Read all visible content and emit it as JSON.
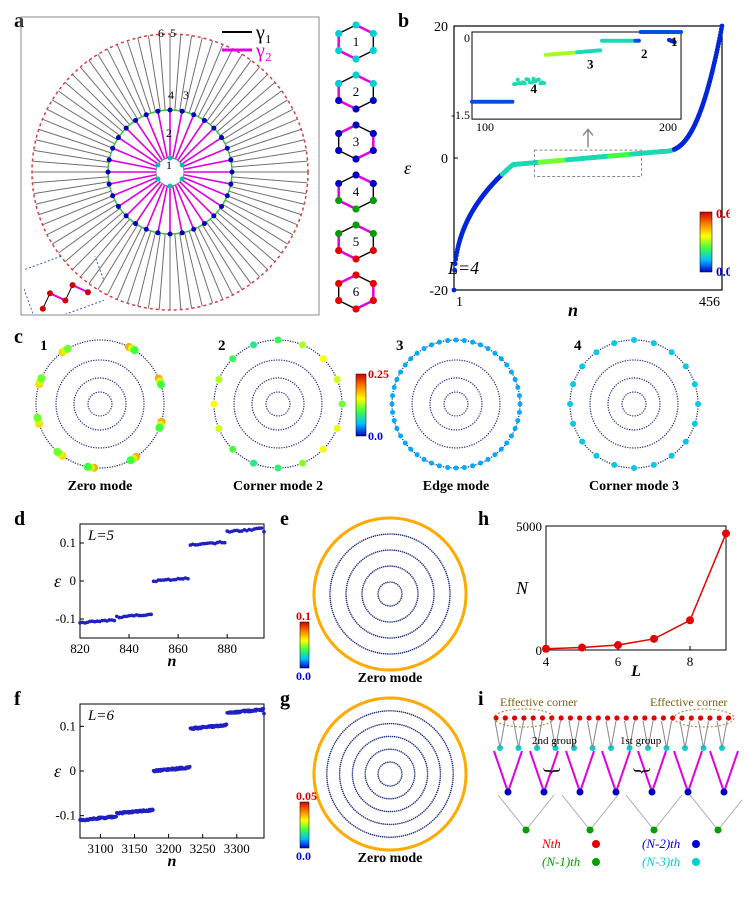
{
  "panels": {
    "a": {
      "label": "a"
    },
    "b": {
      "label": "b",
      "xlabel": "n",
      "ylabel": "ε",
      "xlim": [
        1,
        456
      ],
      "ylim": [
        -20,
        20
      ],
      "annotation": "L=4",
      "inset": {
        "xlim": [
          100,
          200
        ],
        "ylim": [
          -1.5,
          1.5
        ]
      },
      "cbar": {
        "min": "0.0",
        "max": "0.6"
      }
    },
    "c": {
      "labels": [
        "Zero mode",
        "Corner mode 2",
        "Edge mode",
        "Corner mode 3"
      ],
      "numbers": [
        "1",
        "2",
        "3",
        "4"
      ],
      "cbar": {
        "min": "0.0",
        "max": "0.25"
      }
    },
    "d": {
      "label": "d",
      "xlabel": "n",
      "ylabel": "ε",
      "xlim": [
        820,
        890
      ],
      "ylim": [
        -0.15,
        0.15
      ],
      "annotation": "L=5"
    },
    "e": {
      "label": "e",
      "caption": "Zero mode",
      "cbar": {
        "min": "0.0",
        "max": "0.1"
      }
    },
    "f": {
      "label": "f",
      "xlabel": "n",
      "ylabel": "ε",
      "xlim": [
        3080,
        3340
      ],
      "ylim": [
        -0.15,
        0.15
      ],
      "annotation": "L=6"
    },
    "g": {
      "label": "g",
      "caption": "Zero mode",
      "cbar": {
        "min": "0.0",
        "max": "0.05"
      }
    },
    "h": {
      "label": "h",
      "xlabel": "L",
      "ylabel": "N",
      "xlim": [
        4,
        9
      ],
      "ylim": [
        0,
        5000
      ],
      "xticks": [
        4,
        6,
        8
      ],
      "yticks": [
        0,
        5000
      ],
      "data_x": [
        4,
        5,
        6,
        7,
        8,
        9
      ],
      "data_y": [
        50,
        100,
        200,
        450,
        1200,
        4700
      ]
    },
    "i": {
      "label": "i",
      "effective_corner": "Effective corner",
      "groups": [
        "2nd group",
        "1st group"
      ],
      "legend": [
        {
          "text": "Nth",
          "color": "#e60000"
        },
        {
          "text": "(N-1)th",
          "color": "#00a000"
        },
        {
          "text": "(N-2)th",
          "color": "#0000d0"
        },
        {
          "text": "(N-3)th",
          "color": "#00d0d0"
        }
      ]
    }
  },
  "legend_a": {
    "gamma1": {
      "text": "γ₁",
      "color": "#000000"
    },
    "gamma2": {
      "text": "γ₂",
      "color": "#e000e0"
    }
  },
  "hexagons": {
    "labels": [
      "1",
      "2",
      "3",
      "4",
      "5",
      "6"
    ]
  },
  "sunburst": {
    "ring_labels": [
      "1",
      "2",
      "3",
      "4",
      "5",
      "6"
    ],
    "outer_ring_color": "#d04040",
    "mid_ring_color": "#40c040",
    "inner_dot_color": "#00c0c0",
    "spoke_inner": "#e000e0",
    "spoke_outer": "#606060",
    "mid_dot_color": "#0000c0"
  },
  "colors": {
    "jet_low": "#0000d0",
    "jet_mid1": "#00c0ff",
    "jet_mid2": "#40ff40",
    "jet_mid3": "#ffff00",
    "jet_mid4": "#ff8000",
    "jet_high": "#d00000"
  }
}
